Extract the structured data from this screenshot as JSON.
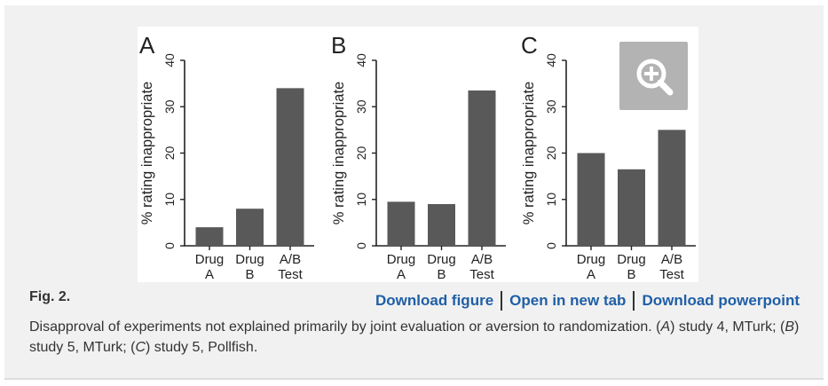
{
  "figure": {
    "label": "Fig. 2.",
    "zoom_icon": "zoom-in-icon",
    "colors": {
      "bar": "#595959",
      "panel_bg": "#f1f1f1",
      "link": "#1f5fa6",
      "zoom_bg": "#b3b3b3"
    }
  },
  "links": {
    "download_figure": "Download figure",
    "open_new_tab": "Open in new tab",
    "download_powerpoint": "Download powerpoint"
  },
  "caption": {
    "t1": "Disapproval of experiments not explained primarily by joint evaluation or aversion to randomization. (",
    "a": "A",
    "t2": ") study 4, MTurk; (",
    "b": "B",
    "t3": ") study 5, MTurk; (",
    "c": "C",
    "t4": ") study 5, Pollfish."
  },
  "chart_data": [
    {
      "panel": "A",
      "type": "bar",
      "ylabel": "% rating inappropriate",
      "ylim": [
        0,
        40
      ],
      "yticks": [
        0,
        10,
        20,
        30,
        40
      ],
      "categories": [
        [
          "Drug",
          "A"
        ],
        [
          "Drug",
          "B"
        ],
        [
          "A/B",
          "Test"
        ]
      ],
      "values": [
        4,
        8,
        34
      ]
    },
    {
      "panel": "B",
      "type": "bar",
      "ylabel": "% rating inappropriate",
      "ylim": [
        0,
        40
      ],
      "yticks": [
        0,
        10,
        20,
        30,
        40
      ],
      "categories": [
        [
          "Drug",
          "A"
        ],
        [
          "Drug",
          "B"
        ],
        [
          "A/B",
          "Test"
        ]
      ],
      "values": [
        9.5,
        9,
        33.5
      ]
    },
    {
      "panel": "C",
      "type": "bar",
      "ylabel": "% rating inappropriate",
      "ylim": [
        0,
        40
      ],
      "yticks": [
        0,
        10,
        20,
        30,
        40
      ],
      "categories": [
        [
          "Drug",
          "A"
        ],
        [
          "Drug",
          "B"
        ],
        [
          "A/B",
          "Test"
        ]
      ],
      "values": [
        20,
        16.5,
        25
      ]
    }
  ]
}
